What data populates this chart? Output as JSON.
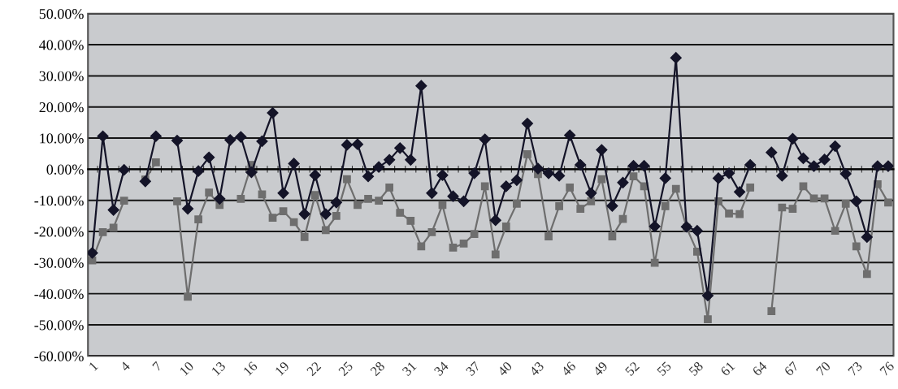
{
  "chart_data": {
    "type": "line",
    "categories": [
      "1",
      null,
      null,
      "4",
      null,
      null,
      "7",
      null,
      null,
      "10",
      null,
      null,
      "13",
      null,
      null,
      "16",
      null,
      null,
      "19",
      null,
      null,
      "22",
      null,
      null,
      "25",
      null,
      null,
      "28",
      null,
      null,
      "31",
      null,
      null,
      "34",
      null,
      null,
      "37",
      null,
      null,
      "40",
      null,
      null,
      "43",
      null,
      null,
      "46",
      null,
      null,
      "49",
      null,
      null,
      "52",
      null,
      null,
      "55",
      null,
      null,
      "58",
      null,
      null,
      "61",
      null,
      null,
      "64",
      null,
      null,
      "67",
      null,
      null,
      "70",
      null,
      null,
      "73",
      null,
      null,
      "76"
    ],
    "series": [
      {
        "color": "#141428",
        "marker": "diamond",
        "values": [
          -26.9,
          10.6,
          -13.1,
          -0.2,
          null,
          -3.9,
          10.6,
          null,
          9.2,
          -12.7,
          -0.6,
          3.8,
          -9.5,
          9.4,
          10.4,
          -1.0,
          9.0,
          18.1,
          -7.7,
          1.8,
          -14.4,
          -1.9,
          -14.4,
          -10.7,
          7.8,
          8.0,
          -2.3,
          0.7,
          3.0,
          6.8,
          3.0,
          26.8,
          -7.7,
          -1.9,
          -8.7,
          -10.3,
          -1.3,
          9.6,
          -16.4,
          -5.5,
          -3.5,
          14.7,
          0.2,
          -1.3,
          -2.1,
          10.9,
          1.4,
          -7.7,
          6.2,
          -11.8,
          -4.3,
          1.1,
          1.1,
          -18.4,
          -2.9,
          35.8,
          -18.5,
          -19.8,
          -40.6,
          -2.9,
          -1.3,
          -7.3,
          1.4,
          null,
          5.4,
          -2.1,
          9.8,
          3.5,
          1.0,
          3.1,
          7.4,
          -1.5,
          -10.3,
          -21.8,
          1.0,
          1.0
        ]
      },
      {
        "color": "#6e6e6e",
        "marker": "square",
        "values": [
          -29.3,
          -20.2,
          -18.8,
          -10.1,
          null,
          -3.3,
          2.2,
          null,
          -10.3,
          -41.0,
          -16.1,
          -7.5,
          -11.5,
          null,
          -9.5,
          1.4,
          -8.1,
          -15.6,
          -13.5,
          -17.0,
          -21.8,
          -8.3,
          -19.6,
          -15.0,
          -3.2,
          -11.5,
          -9.5,
          -10.1,
          -5.9,
          -14.0,
          -16.6,
          -24.8,
          -20.2,
          -11.5,
          -25.2,
          -23.9,
          -20.8,
          -5.5,
          -27.4,
          -18.4,
          -11.1,
          4.8,
          -1.6,
          -21.6,
          -11.9,
          -5.9,
          -12.7,
          -10.3,
          -3.2,
          -21.6,
          -16.0,
          -2.3,
          -5.5,
          -30.1,
          -11.9,
          -6.3,
          -18.8,
          -26.5,
          -48.2,
          -10.3,
          -14.2,
          -14.4,
          -5.9,
          null,
          -45.6,
          -12.3,
          -12.7,
          -5.5,
          -9.4,
          -9.4,
          -19.8,
          -11.1,
          -24.8,
          -33.7,
          -4.8,
          -10.7
        ]
      }
    ],
    "ylim": [
      -60,
      50
    ],
    "yticks": [
      {
        "value": -60,
        "label": "-60.00%"
      },
      {
        "value": -50,
        "label": "-50.00%"
      },
      {
        "value": -40,
        "label": "-40.00%"
      },
      {
        "value": -30,
        "label": "-30.00%"
      },
      {
        "value": -20,
        "label": "-20.00%"
      },
      {
        "value": -10,
        "label": "-10.00%"
      },
      {
        "value": 0,
        "label": "0.00%"
      },
      {
        "value": 10,
        "label": "10.00%"
      },
      {
        "value": 20,
        "label": "20.00%"
      },
      {
        "value": 30,
        "label": "30.00%"
      },
      {
        "value": 40,
        "label": "40.00%"
      },
      {
        "value": 50,
        "label": "50.00%"
      }
    ],
    "grid": "y",
    "legend": false,
    "line_style": "solid"
  }
}
